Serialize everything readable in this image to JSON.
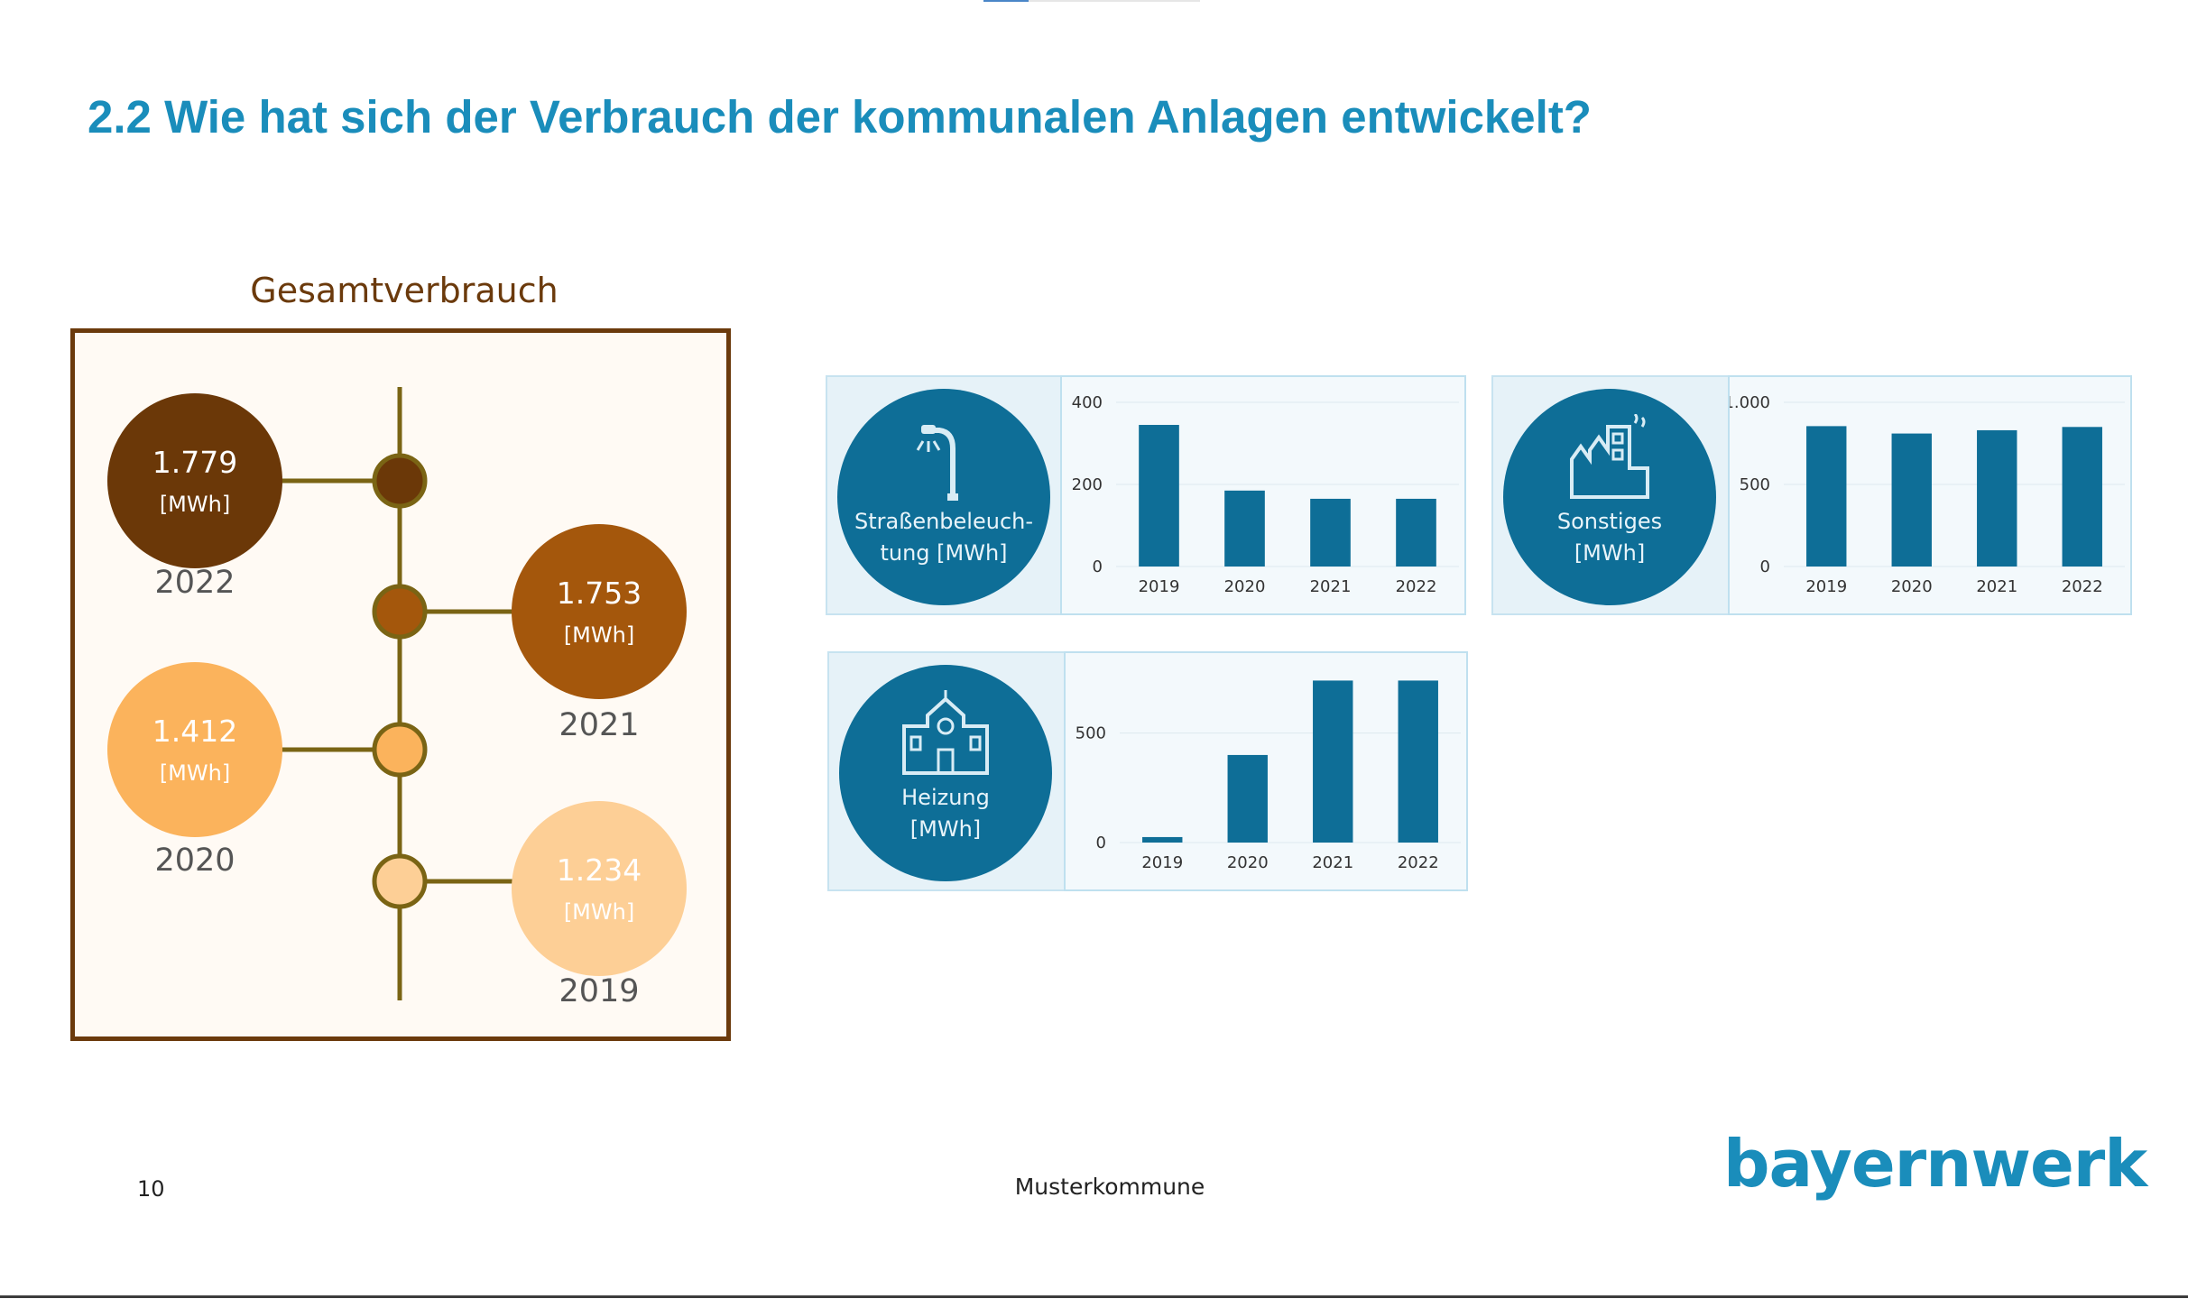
{
  "slide": {
    "title": "2.2 Wie hat sich der Verbrauch der kommunalen Anlagen entwickelt?",
    "page_number": "10",
    "footer_text": "Musterkommune",
    "logo": "bayernwerk"
  },
  "total": {
    "title": "Gesamtverbrauch",
    "entries": [
      {
        "year": "2022",
        "value": "1.779",
        "unit": "[MWh]",
        "color": "#6b3808"
      },
      {
        "year": "2021",
        "value": "1.753",
        "unit": "[MWh]",
        "color": "#a4570c"
      },
      {
        "year": "2020",
        "value": "1.412",
        "unit": "[MWh]",
        "color": "#fbb35c"
      },
      {
        "year": "2019",
        "value": "1.234",
        "unit": "[MWh]",
        "color": "#fdcf96"
      }
    ],
    "line_color": "#7a6414"
  },
  "panels": {
    "street": {
      "label_line1": "Straßenbeleuch-",
      "label_line2": "tung [MWh]",
      "icon": "street-lamp-icon"
    },
    "other": {
      "label_line1": "Sonstiges",
      "label_line2": "[MWh]",
      "icon": "factory-icon"
    },
    "heating": {
      "label_line1": "Heizung",
      "label_line2": "[MWh]",
      "icon": "building-icon"
    }
  },
  "colors": {
    "accent": "#1a8dbb",
    "bar": "#0e6e97",
    "panel_bg": "#e6f2f8"
  },
  "chart_data": [
    {
      "type": "bar",
      "categories": [
        "2019",
        "2020",
        "2021",
        "2022"
      ],
      "values": [
        345,
        185,
        165,
        165
      ],
      "ylim": [
        0,
        400
      ],
      "yticks": [
        0,
        200,
        400
      ],
      "ytick_labels": [
        "0",
        "200",
        "400"
      ],
      "grid": true
    },
    {
      "type": "bar",
      "categories": [
        "2019",
        "2020",
        "2021",
        "2022"
      ],
      "values": [
        855,
        810,
        830,
        850
      ],
      "ylim": [
        0,
        1000
      ],
      "yticks": [
        0,
        500,
        1000
      ],
      "ytick_labels": [
        "0",
        "500",
        "1.000"
      ],
      "grid": true
    },
    {
      "type": "bar",
      "categories": [
        "2019",
        "2020",
        "2021",
        "2022"
      ],
      "values": [
        25,
        400,
        740,
        740
      ],
      "ylim": [
        0,
        750
      ],
      "yticks": [
        0,
        500
      ],
      "ytick_labels": [
        "0",
        "500"
      ],
      "grid": true
    }
  ]
}
